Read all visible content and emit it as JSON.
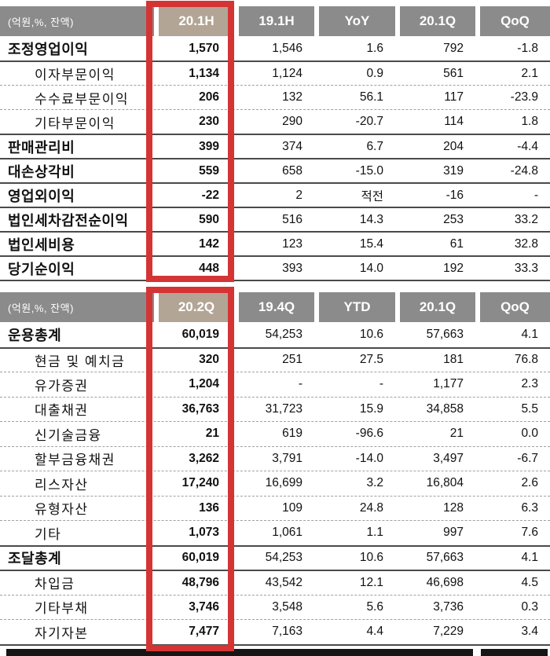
{
  "colors": {
    "header_bg": "#8b8b8b",
    "header_text": "#ffffff",
    "highlight_header_bg": "#b3a595",
    "highlight_border": "#d53434",
    "solid_line": "#4a4a4a",
    "dashed_line": "#a0a0a0",
    "text": "#111111"
  },
  "tables": [
    {
      "name": "profit-loss-table",
      "unit_label": "(억원,%, 잔액)",
      "highlight_column": "20.1H",
      "columns": [
        "20.1H",
        "19.1H",
        "YoY",
        "20.1Q",
        "QoQ"
      ],
      "rows": [
        {
          "label": "조정영업이익",
          "level": "main",
          "sep": "none",
          "values": [
            "1,570",
            "1,546",
            "1.6",
            "792",
            "-1.8"
          ]
        },
        {
          "label": "이자부문이익",
          "level": "sub",
          "sep": "solid",
          "values": [
            "1,134",
            "1,124",
            "0.9",
            "561",
            "2.1"
          ]
        },
        {
          "label": "수수료부문이익",
          "level": "sub",
          "sep": "dashed",
          "values": [
            "206",
            "132",
            "56.1",
            "117",
            "-23.9"
          ]
        },
        {
          "label": "기타부문이익",
          "level": "sub",
          "sep": "dashed",
          "values": [
            "230",
            "290",
            "-20.7",
            "114",
            "1.8"
          ]
        },
        {
          "label": "판매관리비",
          "level": "main",
          "sep": "solid",
          "values": [
            "399",
            "374",
            "6.7",
            "204",
            "-4.4"
          ]
        },
        {
          "label": "대손상각비",
          "level": "main",
          "sep": "solid",
          "values": [
            "559",
            "658",
            "-15.0",
            "319",
            "-24.8"
          ]
        },
        {
          "label": "영업외이익",
          "level": "main",
          "sep": "solid",
          "values": [
            "-22",
            "2",
            "적전",
            "-16",
            "-"
          ]
        },
        {
          "label": "법인세차감전순이익",
          "level": "main",
          "sep": "solid",
          "values": [
            "590",
            "516",
            "14.3",
            "253",
            "33.2"
          ]
        },
        {
          "label": "법인세비용",
          "level": "main",
          "sep": "solid",
          "values": [
            "142",
            "123",
            "15.4",
            "61",
            "32.8"
          ]
        },
        {
          "label": "당기순이익",
          "level": "main",
          "sep": "solid",
          "values": [
            "448",
            "393",
            "14.0",
            "192",
            "33.3"
          ]
        }
      ]
    },
    {
      "name": "assets-funding-table",
      "unit_label": "(억원,%, 잔액)",
      "highlight_column": "20.2Q",
      "columns": [
        "20.2Q",
        "19.4Q",
        "YTD",
        "20.1Q",
        "QoQ"
      ],
      "rows": [
        {
          "label": "운용총계",
          "level": "main",
          "sep": "none",
          "values": [
            "60,019",
            "54,253",
            "10.6",
            "57,663",
            "4.1"
          ]
        },
        {
          "label": "현금 및 예치금",
          "level": "sub",
          "sep": "solid",
          "values": [
            "320",
            "251",
            "27.5",
            "181",
            "76.8"
          ]
        },
        {
          "label": "유가증권",
          "level": "sub",
          "sep": "dashed",
          "values": [
            "1,204",
            "-",
            "-",
            "1,177",
            "2.3"
          ]
        },
        {
          "label": "대출채권",
          "level": "sub",
          "sep": "dashed",
          "values": [
            "36,763",
            "31,723",
            "15.9",
            "34,858",
            "5.5"
          ]
        },
        {
          "label": "신기술금융",
          "level": "sub",
          "sep": "dashed",
          "values": [
            "21",
            "619",
            "-96.6",
            "21",
            "0.0"
          ]
        },
        {
          "label": "할부금융채권",
          "level": "sub",
          "sep": "dashed",
          "values": [
            "3,262",
            "3,791",
            "-14.0",
            "3,497",
            "-6.7"
          ]
        },
        {
          "label": "리스자산",
          "level": "sub",
          "sep": "dashed",
          "values": [
            "17,240",
            "16,699",
            "3.2",
            "16,804",
            "2.6"
          ]
        },
        {
          "label": "유형자산",
          "level": "sub",
          "sep": "dashed",
          "values": [
            "136",
            "109",
            "24.8",
            "128",
            "6.3"
          ]
        },
        {
          "label": "기타",
          "level": "sub",
          "sep": "dashed",
          "values": [
            "1,073",
            "1,061",
            "1.1",
            "997",
            "7.6"
          ]
        },
        {
          "label": "조달총계",
          "level": "main",
          "sep": "solid",
          "values": [
            "60,019",
            "54,253",
            "10.6",
            "57,663",
            "4.1"
          ]
        },
        {
          "label": "차입금",
          "level": "sub",
          "sep": "solid",
          "values": [
            "48,796",
            "43,542",
            "12.1",
            "46,698",
            "4.5"
          ]
        },
        {
          "label": "기타부채",
          "level": "sub",
          "sep": "dashed",
          "values": [
            "3,746",
            "3,548",
            "5.6",
            "3,736",
            "0.3"
          ]
        },
        {
          "label": "자기자본",
          "level": "sub",
          "sep": "dashed",
          "values": [
            "7,477",
            "7,163",
            "4.4",
            "7,229",
            "3.4"
          ]
        }
      ]
    }
  ]
}
